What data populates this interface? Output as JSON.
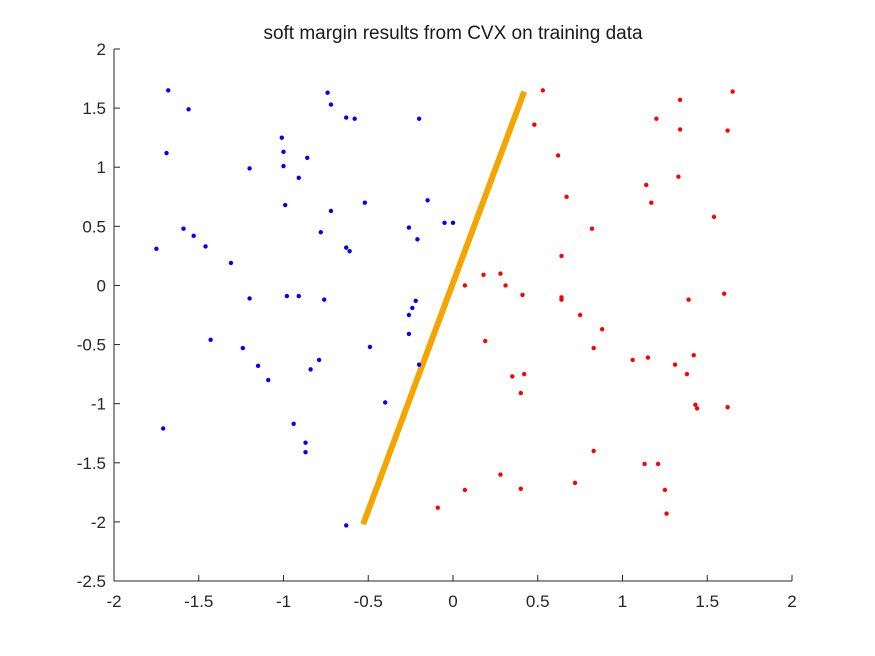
{
  "chart_data": {
    "type": "scatter",
    "title": "soft margin results from CVX on training data",
    "xlabel": "",
    "ylabel": "",
    "xlim": [
      -2,
      2
    ],
    "ylim": [
      -2.5,
      2
    ],
    "x_ticks": [
      "-2",
      "-1.5",
      "-1",
      "-0.5",
      "0",
      "0.5",
      "1",
      "1.5",
      "2"
    ],
    "y_ticks": [
      "-2.5",
      "-2",
      "-1.5",
      "-1",
      "-0.5",
      "0",
      "0.5",
      "1",
      "1.5",
      "2"
    ],
    "grid": false,
    "legend": "none",
    "series": [
      {
        "color": "#0000ff",
        "points": [
          [
            -1.68,
            1.65
          ],
          [
            -1.56,
            1.49
          ],
          [
            -1.69,
            1.12
          ],
          [
            -1.75,
            0.31
          ],
          [
            -1.59,
            0.48
          ],
          [
            -1.53,
            0.42
          ],
          [
            -1.46,
            0.33
          ],
          [
            -1.31,
            0.19
          ],
          [
            -1.43,
            -0.46
          ],
          [
            -1.2,
            0.99
          ],
          [
            -1.2,
            -0.11
          ],
          [
            -1.24,
            -0.53
          ],
          [
            -1.15,
            -0.68
          ],
          [
            -1.09,
            -0.8
          ],
          [
            -1.01,
            1.25
          ],
          [
            -1.0,
            1.13
          ],
          [
            -1.0,
            1.01
          ],
          [
            -0.99,
            0.68
          ],
          [
            -0.98,
            -0.09
          ],
          [
            -0.91,
            0.91
          ],
          [
            -0.91,
            -0.09
          ],
          [
            -0.86,
            1.08
          ],
          [
            -0.78,
            0.45
          ],
          [
            -0.72,
            0.63
          ],
          [
            -0.74,
            1.63
          ],
          [
            -0.72,
            1.53
          ],
          [
            -0.63,
            1.42
          ],
          [
            -0.58,
            1.41
          ],
          [
            -0.63,
            0.32
          ],
          [
            -0.61,
            0.29
          ],
          [
            -0.52,
            0.7
          ],
          [
            -0.76,
            -0.12
          ],
          [
            -0.79,
            -0.63
          ],
          [
            -0.84,
            -0.71
          ],
          [
            -0.94,
            -1.17
          ],
          [
            -0.87,
            -1.33
          ],
          [
            -0.87,
            -1.41
          ],
          [
            -1.71,
            -1.21
          ],
          [
            -0.63,
            -2.03
          ],
          [
            -0.49,
            -0.52
          ],
          [
            -0.4,
            -0.99
          ],
          [
            -0.2,
            1.41
          ],
          [
            -0.26,
            0.49
          ],
          [
            -0.21,
            0.39
          ],
          [
            -0.15,
            0.72
          ],
          [
            -0.05,
            0.53
          ],
          [
            0.0,
            0.53
          ],
          [
            -0.26,
            -0.25
          ],
          [
            -0.24,
            -0.19
          ],
          [
            -0.22,
            -0.13
          ],
          [
            -0.26,
            -0.41
          ],
          [
            -0.2,
            -0.67
          ]
        ]
      },
      {
        "color": "#ff0000",
        "points": [
          [
            0.53,
            1.65
          ],
          [
            0.48,
            1.36
          ],
          [
            0.62,
            1.1
          ],
          [
            0.67,
            0.75
          ],
          [
            0.64,
            0.25
          ],
          [
            0.82,
            0.48
          ],
          [
            0.64,
            -0.1
          ],
          [
            0.64,
            -0.12
          ],
          [
            0.75,
            -0.25
          ],
          [
            0.88,
            -0.37
          ],
          [
            0.83,
            -0.53
          ],
          [
            1.06,
            -0.63
          ],
          [
            1.15,
            -0.61
          ],
          [
            1.31,
            -0.67
          ],
          [
            1.38,
            -0.75
          ],
          [
            1.42,
            -0.59
          ],
          [
            1.43,
            -1.01
          ],
          [
            1.44,
            -1.04
          ],
          [
            1.62,
            -1.03
          ],
          [
            1.14,
            0.85
          ],
          [
            1.17,
            0.7
          ],
          [
            1.2,
            1.41
          ],
          [
            1.34,
            1.57
          ],
          [
            1.34,
            1.32
          ],
          [
            1.33,
            0.92
          ],
          [
            1.54,
            0.58
          ],
          [
            1.39,
            -0.12
          ],
          [
            1.6,
            -0.07
          ],
          [
            1.62,
            1.31
          ],
          [
            1.65,
            1.64
          ],
          [
            0.07,
            0.0
          ],
          [
            0.18,
            0.09
          ],
          [
            0.28,
            0.1
          ],
          [
            0.31,
            0.0
          ],
          [
            0.41,
            -0.08
          ],
          [
            0.19,
            -0.47
          ],
          [
            0.35,
            -0.77
          ],
          [
            0.42,
            -0.75
          ],
          [
            0.4,
            -0.91
          ],
          [
            0.83,
            -1.4
          ],
          [
            0.72,
            -1.67
          ],
          [
            1.13,
            -1.51
          ],
          [
            1.21,
            -1.51
          ],
          [
            1.25,
            -1.73
          ],
          [
            1.26,
            -1.93
          ],
          [
            0.28,
            -1.6
          ],
          [
            0.4,
            -1.72
          ],
          [
            0.07,
            -1.73
          ],
          [
            -0.09,
            -1.88
          ]
        ]
      }
    ],
    "line": {
      "color": "#f5a500",
      "x": [
        -0.53,
        0.42
      ],
      "y": [
        -2.02,
        1.64
      ]
    }
  }
}
